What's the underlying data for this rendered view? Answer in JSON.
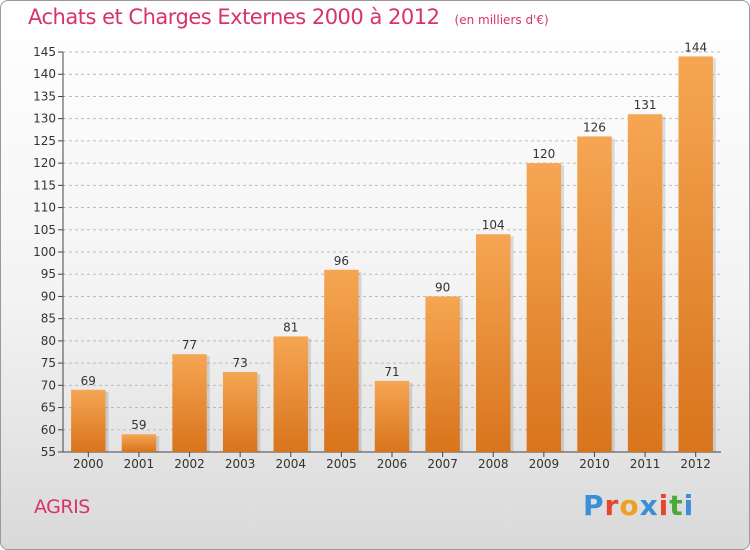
{
  "chart_title": "Achats et Charges Externes 2000 à 2012",
  "chart_unit": "(en milliers d'€)",
  "commune": "AGRIS",
  "brand": {
    "text": "Proxiti",
    "letter_colors": [
      "#3a8fd6",
      "#e8452e",
      "#f0a020",
      "#3a8fd6",
      "#e8452e",
      "#4aa83c",
      "#3a8fd6"
    ]
  },
  "colors": {
    "bar_top": "#f6a653",
    "bar_bottom": "#d8741c",
    "title": "#d8326e",
    "grid": "#bcbcbc"
  },
  "chart_data": {
    "type": "bar",
    "title": "Achats et Charges Externes 2000 à 2012",
    "subtitle": "(en milliers d'€)",
    "xlabel": "",
    "ylabel": "",
    "categories": [
      "2000",
      "2001",
      "2002",
      "2003",
      "2004",
      "2005",
      "2006",
      "2007",
      "2008",
      "2009",
      "2010",
      "2011",
      "2012"
    ],
    "values": [
      69,
      59,
      77,
      73,
      81,
      96,
      71,
      90,
      104,
      120,
      126,
      131,
      144
    ],
    "ylim": [
      55,
      145
    ],
    "yticks": [
      55,
      60,
      65,
      70,
      75,
      80,
      85,
      90,
      95,
      100,
      105,
      110,
      115,
      120,
      125,
      130,
      135,
      140,
      145
    ],
    "grid": true,
    "legend": "none"
  }
}
